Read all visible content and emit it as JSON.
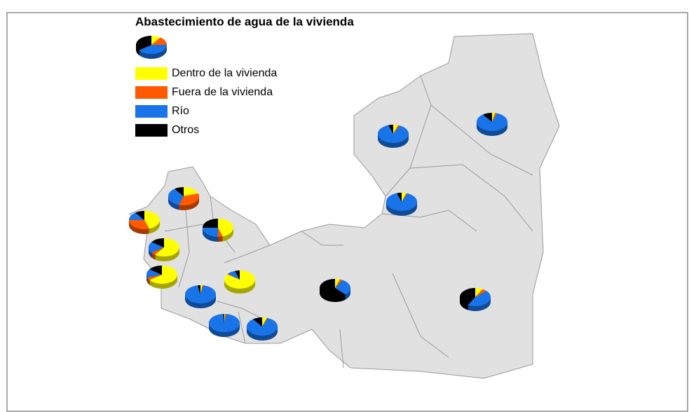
{
  "title": "Abastecimiento de agua de la vivienda",
  "legend": [
    {
      "label": "Dentro de la vivienda",
      "color": "#ffff00"
    },
    {
      "label": "Fuera de la vivienda",
      "color": "#ff5a00"
    },
    {
      "label": "Río",
      "color": "#1874e8"
    },
    {
      "label": "Otros",
      "color": "#000000"
    }
  ],
  "legend_pie": {
    "values": [
      10,
      15,
      40,
      35
    ]
  },
  "pies": [
    {
      "values": [
        5,
        2,
        88,
        5
      ]
    },
    {
      "values": [
        3,
        2,
        85,
        10
      ]
    },
    {
      "values": [
        5,
        1,
        89,
        5
      ]
    },
    {
      "values": [
        20,
        35,
        35,
        10
      ]
    },
    {
      "values": [
        45,
        30,
        15,
        10
      ]
    },
    {
      "values": [
        45,
        5,
        25,
        25
      ]
    },
    {
      "values": [
        60,
        5,
        20,
        15
      ]
    },
    {
      "values": [
        65,
        5,
        15,
        15
      ]
    },
    {
      "values": [
        85,
        1,
        9,
        5
      ]
    },
    {
      "values": [
        2,
        1,
        94,
        3
      ]
    },
    {
      "values": [
        1,
        1,
        97,
        1
      ]
    },
    {
      "values": [
        5,
        1,
        84,
        10
      ]
    },
    {
      "values": [
        5,
        3,
        30,
        62
      ]
    },
    {
      "values": [
        8,
        5,
        45,
        42
      ]
    }
  ]
}
